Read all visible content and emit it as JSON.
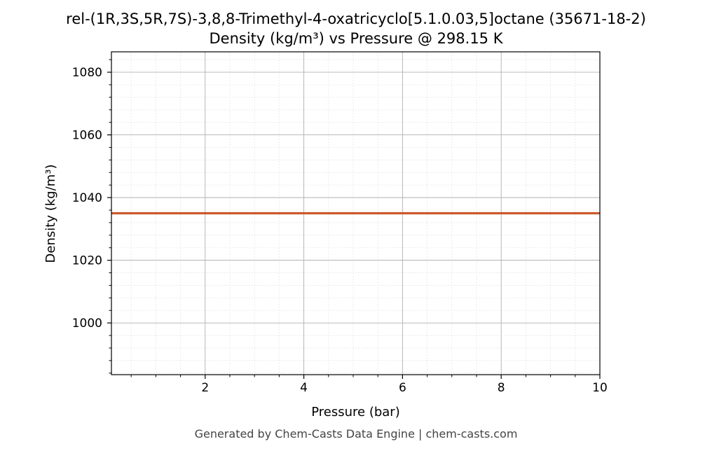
{
  "chart_data": {
    "type": "line",
    "title": "rel-(1R,3S,5R,7S)-3,8,8-Trimethyl-4-oxatricyclo[5.1.0.03,5]octane (35671-18-2)",
    "subtitle": "Density (kg/m³) vs Pressure @ 298.15 K",
    "xlabel": "Pressure (bar)",
    "ylabel": "Density (kg/m³)",
    "xlim": [
      0.1,
      10
    ],
    "ylim": [
      983.5,
      1086.5
    ],
    "xticks": [
      2,
      4,
      6,
      8,
      10
    ],
    "xtick_labels": [
      "2",
      "4",
      "6",
      "8",
      "10"
    ],
    "yticks": [
      1000,
      1020,
      1040,
      1060,
      1080
    ],
    "ytick_labels": [
      "1000",
      "1020",
      "1040",
      "1060",
      "1080"
    ],
    "grid": true,
    "series": [
      {
        "x": [
          0.1,
          1,
          2,
          3,
          4,
          5,
          6,
          7,
          8,
          9,
          10
        ],
        "y": [
          1035.0,
          1035.0,
          1035.0,
          1035.0,
          1035.0,
          1035.0,
          1035.0,
          1035.0,
          1035.0,
          1035.0,
          1035.0
        ],
        "color": "#cc5a2b"
      }
    ]
  },
  "footer": "Generated by Chem-Casts Data Engine | chem-casts.com"
}
